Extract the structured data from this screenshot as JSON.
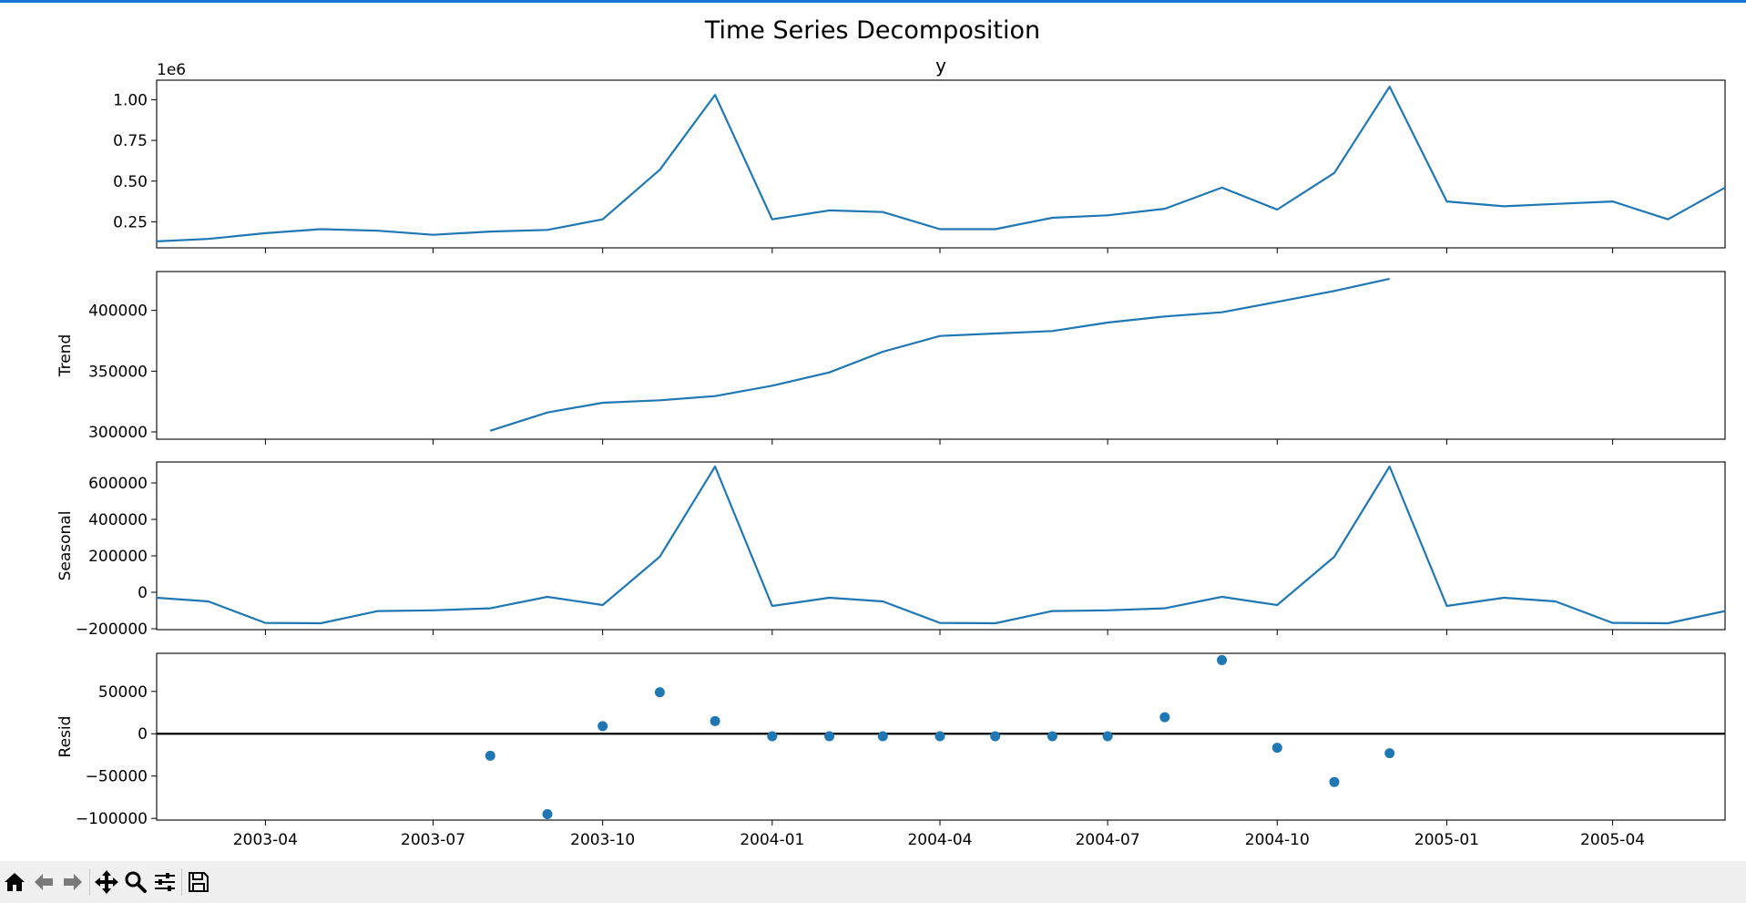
{
  "figure": {
    "suptitle": "Time Series Decomposition"
  },
  "toolbar": {
    "buttons": [
      {
        "icon": "home-icon"
      },
      {
        "icon": "back-arrow-icon"
      },
      {
        "icon": "forward-arrow-icon"
      },
      {
        "icon": "pan-icon"
      },
      {
        "icon": "zoom-icon"
      },
      {
        "icon": "configure-subplots-icon"
      },
      {
        "icon": "save-icon"
      }
    ]
  },
  "chart_data": [
    {
      "type": "line",
      "title": "y",
      "ylabel": "",
      "offset_label": "1e6",
      "x": [
        "2003-02-01",
        "2003-03-01",
        "2003-04-01",
        "2003-05-01",
        "2003-06-01",
        "2003-07-01",
        "2003-08-01",
        "2003-09-01",
        "2003-10-01",
        "2003-11-01",
        "2003-12-01",
        "2004-01-01",
        "2004-02-01",
        "2004-03-01",
        "2004-04-01",
        "2004-05-01",
        "2004-06-01",
        "2004-07-01",
        "2004-08-01",
        "2004-09-01",
        "2004-10-01",
        "2004-11-01",
        "2004-12-01",
        "2005-01-01",
        "2005-02-01",
        "2005-03-01",
        "2005-04-01",
        "2005-05-01",
        "2005-06-01"
      ],
      "values": [
        0.13,
        0.145,
        0.18,
        0.205,
        0.195,
        0.17,
        0.19,
        0.2,
        0.265,
        0.57,
        1.03,
        0.265,
        0.32,
        0.31,
        0.205,
        0.205,
        0.275,
        0.29,
        0.33,
        0.46,
        0.325,
        0.55,
        1.08,
        0.375,
        0.345,
        0.36,
        0.375,
        0.265,
        0.46
      ],
      "ylim": [
        0.09,
        1.12
      ],
      "yticks": [
        0.25,
        0.5,
        0.75,
        1.0
      ],
      "ytick_labels": [
        "0.25",
        "0.50",
        "0.75",
        "1.00"
      ]
    },
    {
      "type": "line",
      "title": "",
      "ylabel": "Trend",
      "x": [
        "2003-08-01",
        "2003-09-01",
        "2003-10-01",
        "2003-11-01",
        "2003-12-01",
        "2004-01-01",
        "2004-02-01",
        "2004-03-01",
        "2004-04-01",
        "2004-05-01",
        "2004-06-01",
        "2004-07-01",
        "2004-08-01",
        "2004-09-01",
        "2004-10-01",
        "2004-11-01",
        "2004-12-01"
      ],
      "values": [
        301000,
        316000,
        324000,
        326000,
        329500,
        338000,
        349000,
        366000,
        379000,
        381000,
        383000,
        390000,
        395000,
        398500,
        407000,
        416000,
        426000
      ],
      "ylim": [
        294000,
        432000
      ],
      "yticks": [
        300000,
        350000,
        400000
      ],
      "ytick_labels": [
        "300000",
        "350000",
        "400000"
      ]
    },
    {
      "type": "line",
      "title": "",
      "ylabel": "Seasonal",
      "x": [
        "2003-02-01",
        "2003-03-01",
        "2003-04-01",
        "2003-05-01",
        "2003-06-01",
        "2003-07-01",
        "2003-08-01",
        "2003-09-01",
        "2003-10-01",
        "2003-11-01",
        "2003-12-01",
        "2004-01-01",
        "2004-02-01",
        "2004-03-01",
        "2004-04-01",
        "2004-05-01",
        "2004-06-01",
        "2004-07-01",
        "2004-08-01",
        "2004-09-01",
        "2004-10-01",
        "2004-11-01",
        "2004-12-01",
        "2005-01-01",
        "2005-02-01",
        "2005-03-01",
        "2005-04-01",
        "2005-05-01",
        "2005-06-01"
      ],
      "values": [
        -30000,
        -50000,
        -168000,
        -170000,
        -103000,
        -99000,
        -88000,
        -25000,
        -70000,
        195000,
        690000,
        -75000,
        -30000,
        -50000,
        -168000,
        -170000,
        -103000,
        -99000,
        -88000,
        -25000,
        -70000,
        195000,
        690000,
        -75000,
        -30000,
        -50000,
        -168000,
        -170000,
        -103000
      ],
      "ylim": [
        -205000,
        715000
      ],
      "yticks": [
        -200000,
        0,
        200000,
        400000,
        600000
      ],
      "ytick_labels": [
        "−200000",
        "0",
        "200000",
        "400000",
        "600000"
      ]
    },
    {
      "type": "scatter",
      "title": "",
      "ylabel": "Resid",
      "x": [
        "2003-08-01",
        "2003-09-01",
        "2003-10-01",
        "2003-11-01",
        "2003-12-01",
        "2004-01-01",
        "2004-02-01",
        "2004-03-01",
        "2004-04-01",
        "2004-05-01",
        "2004-06-01",
        "2004-07-01",
        "2004-08-01",
        "2004-09-01",
        "2004-10-01",
        "2004-11-01",
        "2004-12-01"
      ],
      "values": [
        -26000,
        -95000,
        9000,
        49000,
        15000,
        -3000,
        -3000,
        -3000,
        -3000,
        -3000,
        -3000,
        -3000,
        19500,
        87000,
        -16500,
        -57000,
        -23000
      ],
      "ylim": [
        -102000,
        95000
      ],
      "yticks": [
        -100000,
        -50000,
        0,
        50000
      ],
      "ytick_labels": [
        "−100000",
        "−50000",
        "0",
        "50000"
      ],
      "zero_line": true
    }
  ],
  "x_axis": {
    "range": [
      "2003-02-01",
      "2005-06-01"
    ],
    "ticks": [
      "2003-04-01",
      "2003-07-01",
      "2003-10-01",
      "2004-01-01",
      "2004-04-01",
      "2004-07-01",
      "2004-10-01",
      "2005-01-01",
      "2005-04-01"
    ],
    "tick_labels": [
      "2003-04",
      "2003-07",
      "2003-10",
      "2004-01",
      "2004-04",
      "2004-07",
      "2004-10",
      "2005-01",
      "2005-04"
    ]
  },
  "colors": {
    "series": "#1f77b4"
  }
}
